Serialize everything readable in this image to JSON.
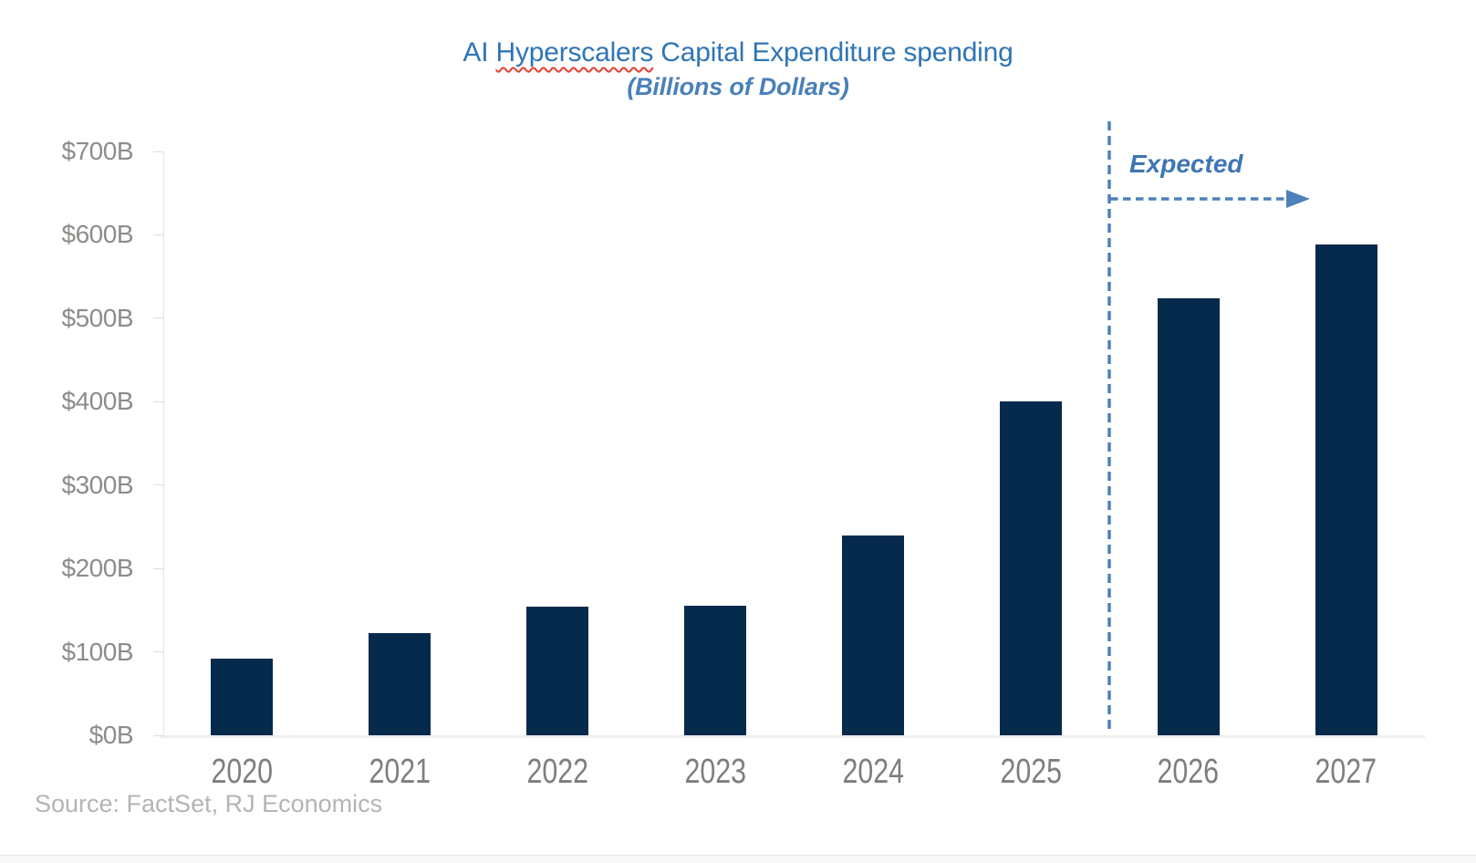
{
  "title": {
    "prefix": "AI ",
    "misspelled_word": "Hyperscalers",
    "suffix": " Capital Expenditure spending",
    "subtitle": "(Billions of Dollars)"
  },
  "annotation": {
    "expected_label": "Expected"
  },
  "source": "Source: FactSet, RJ Economics",
  "colors": {
    "title_blue": "#2F75B5",
    "subtitle_blue": "#4A80B8",
    "bar_navy": "#062A4C",
    "annotation_blue": "#4E81BA",
    "spellcheck_red": "#E53E30",
    "axis_gray": "#DCDCDC",
    "label_gray": "#7E7E7E",
    "source_gray": "#B4B4B1"
  },
  "chart_data": {
    "type": "bar",
    "title": "AI Hyperscalers Capital Expenditure spending",
    "subtitle": "(Billions of Dollars)",
    "categories": [
      "2020",
      "2021",
      "2022",
      "2023",
      "2024",
      "2025",
      "2026",
      "2027"
    ],
    "values": [
      92,
      123,
      154,
      155,
      240,
      400,
      524,
      589
    ],
    "unit": "billions of dollars",
    "xlabel": "",
    "ylabel": "",
    "ylim": [
      0,
      700
    ],
    "ytick_step": 100,
    "ytick_labels": [
      "$0B",
      "$100B",
      "$200B",
      "$300B",
      "$400B",
      "$500B",
      "$600B",
      "$700B"
    ],
    "bar_color": "#062A4C",
    "grid": false,
    "legend": false,
    "annotations": {
      "expected_divider_after_category": "2025",
      "expected_label": "Expected",
      "expected_applies_to": [
        "2026",
        "2027"
      ]
    }
  }
}
